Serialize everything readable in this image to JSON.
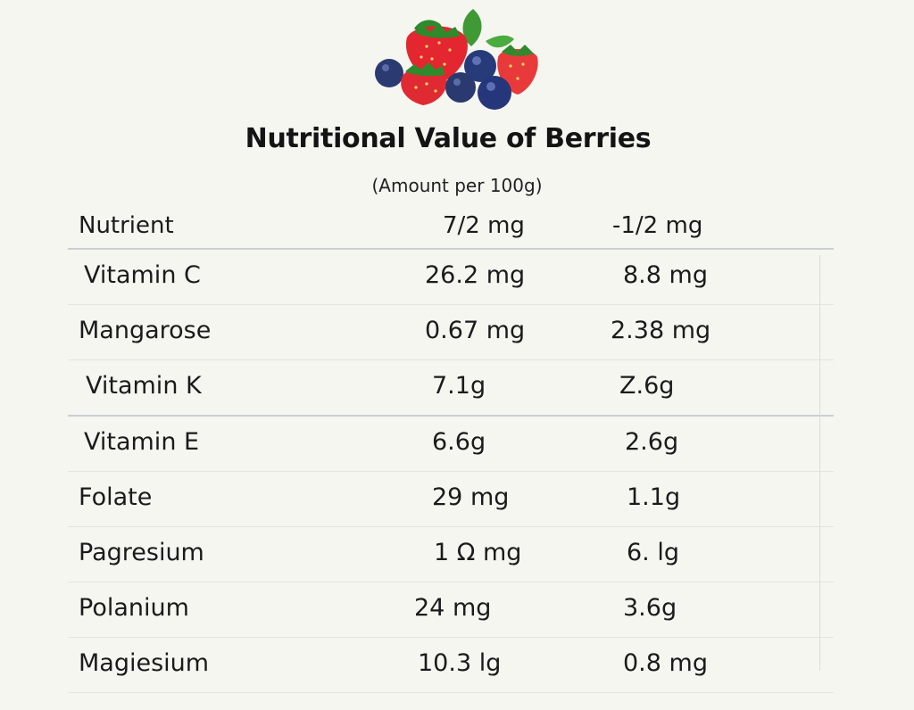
{
  "title": "Nutritional Value of Berries",
  "subtitle": "(Amount per 100g)",
  "table": {
    "headers": [
      "Nutrient",
      "7/2 mg",
      "-1/2 mg"
    ],
    "rows": [
      [
        "Vitamin C",
        "26.2 mg",
        "8.8 mg"
      ],
      [
        "Mangarose",
        "0.67 mg",
        "2.38 mg"
      ],
      [
        "Vitamin K",
        "7.1g",
        "Z.6g"
      ],
      [
        "Vitamin E",
        "6.6g",
        "2.6g"
      ],
      [
        "Folate",
        "29 mg",
        "1.1g"
      ],
      [
        "Pagresium",
        "1 Ω mg",
        "6. lg"
      ],
      [
        "Polanium",
        "24 mg",
        "3.6g"
      ],
      [
        "Magiesium",
        "10.3 lg",
        "0.8 mg"
      ]
    ]
  },
  "colors": {
    "background": "#f6f6f1",
    "strawberry": "#e8333a",
    "blueberry": "#2d3f78",
    "leaf": "#3f9a36"
  }
}
